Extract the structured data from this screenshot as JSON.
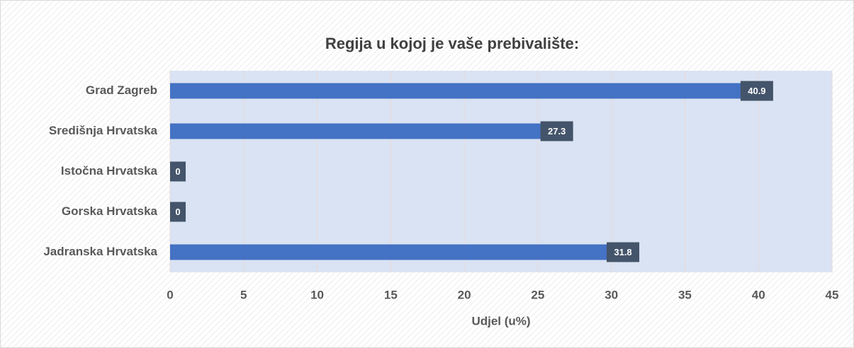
{
  "chart_data": {
    "type": "bar",
    "orientation": "horizontal",
    "title": "Regija u kojoj je vaše prebivalište:",
    "x_label": "Udjel (u%)",
    "categories": [
      "Grad Zagreb",
      "Središnja Hrvatska",
      "Istočna Hrvatska",
      "Gorska Hrvatska",
      "Jadranska Hrvatska"
    ],
    "values": [
      40.9,
      27.3,
      0,
      0,
      31.8
    ],
    "color": "#4472c4",
    "xlim": [
      0,
      45
    ],
    "xticks": [
      0,
      5,
      10,
      15,
      20,
      25,
      30,
      35,
      40,
      45
    ],
    "grid": true
  }
}
